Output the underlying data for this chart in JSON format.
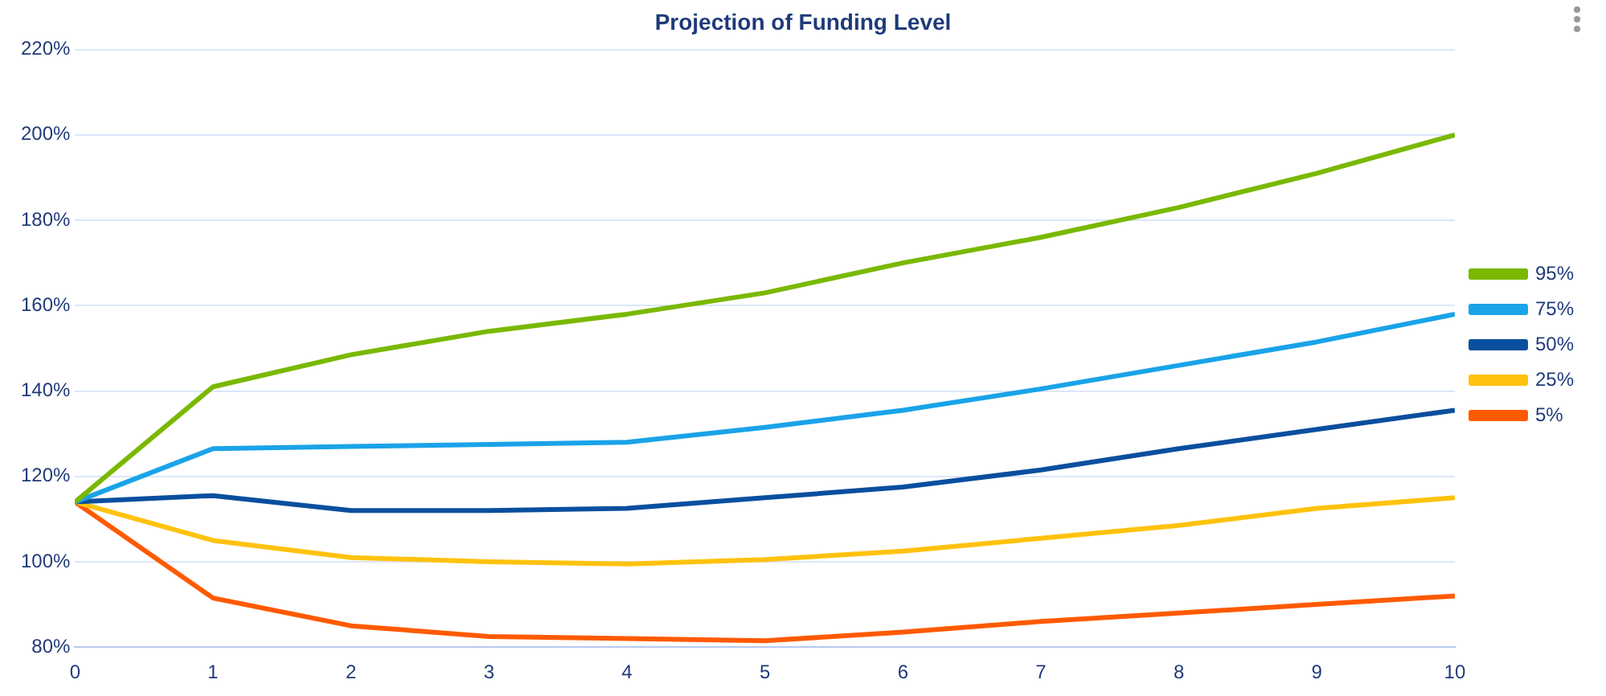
{
  "chart_data": {
    "type": "line",
    "title": "Projection of Funding Level",
    "x": [
      0,
      1,
      2,
      3,
      4,
      5,
      6,
      7,
      8,
      9,
      10
    ],
    "xlim": [
      0,
      10
    ],
    "xticks": [
      0,
      1,
      2,
      3,
      4,
      5,
      6,
      7,
      8,
      9,
      10
    ],
    "ylim": [
      80,
      220
    ],
    "yticks": [
      {
        "value": 80,
        "label": "80%"
      },
      {
        "value": 100,
        "label": "100%"
      },
      {
        "value": 120,
        "label": "120%"
      },
      {
        "value": 140,
        "label": "140%"
      },
      {
        "value": 160,
        "label": "160%"
      },
      {
        "value": 180,
        "label": "180%"
      },
      {
        "value": 200,
        "label": "200%"
      },
      {
        "value": 220,
        "label": "220%"
      }
    ],
    "grid": "y",
    "legend": "right",
    "marker": "none",
    "line_style": "solid",
    "series": [
      {
        "name": "95%",
        "color": "#7ab800",
        "values": [
          114,
          141,
          148.5,
          154,
          158,
          163,
          170,
          176,
          183,
          191,
          200
        ]
      },
      {
        "name": "75%",
        "color": "#1aa3e8",
        "values": [
          114,
          126.5,
          127,
          127.5,
          128,
          131.5,
          135.5,
          140.5,
          146,
          151.5,
          158
        ]
      },
      {
        "name": "50%",
        "color": "#0a4f9e",
        "values": [
          114,
          115.5,
          112,
          112,
          112.5,
          115,
          117.5,
          121.5,
          126.5,
          131,
          135.5
        ]
      },
      {
        "name": "25%",
        "color": "#ffc20e",
        "values": [
          114,
          105,
          101,
          100,
          99.5,
          100.5,
          102.5,
          105.5,
          108.5,
          112.5,
          115
        ]
      },
      {
        "name": "5%",
        "color": "#ff5a00",
        "values": [
          114,
          91.5,
          85,
          82.5,
          82,
          81.5,
          83.5,
          86,
          88,
          90,
          92
        ]
      }
    ]
  }
}
